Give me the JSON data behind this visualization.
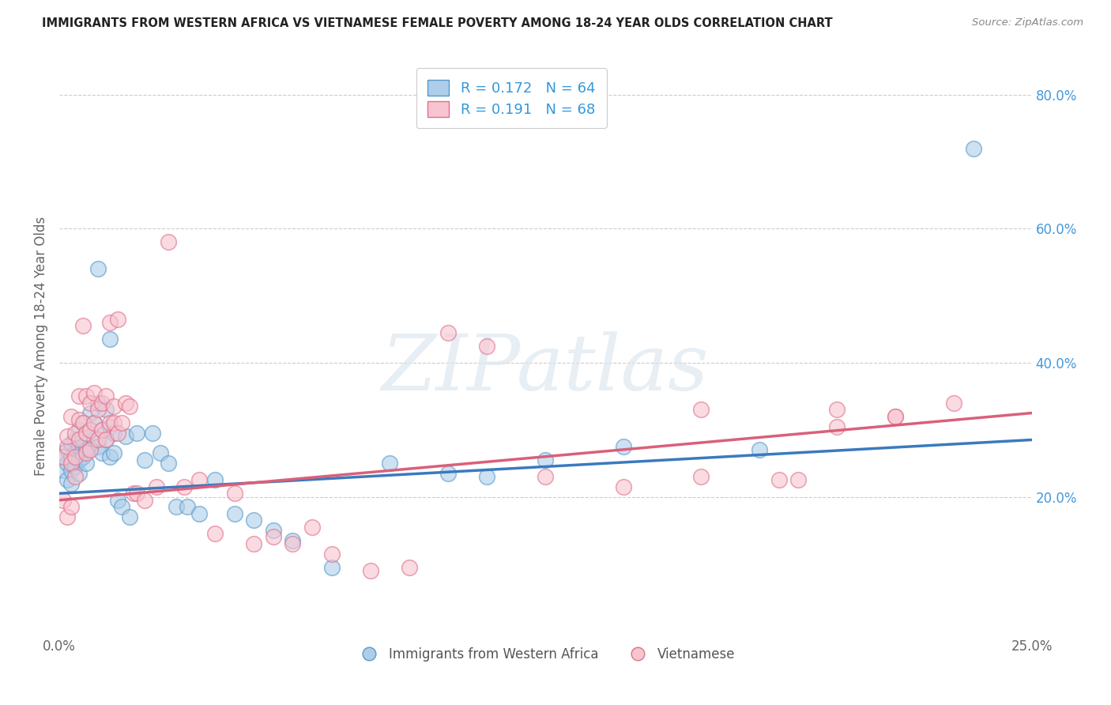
{
  "title": "IMMIGRANTS FROM WESTERN AFRICA VS VIETNAMESE FEMALE POVERTY AMONG 18-24 YEAR OLDS CORRELATION CHART",
  "source": "Source: ZipAtlas.com",
  "ylabel": "Female Poverty Among 18-24 Year Olds",
  "right_yticks": [
    "80.0%",
    "60.0%",
    "40.0%",
    "20.0%"
  ],
  "right_ytick_vals": [
    0.8,
    0.6,
    0.4,
    0.2
  ],
  "legend_text_blue": "R = 0.172   N = 64",
  "legend_text_pink": "R = 0.191   N = 68",
  "legend_label1": "Immigrants from Western Africa",
  "legend_label2": "Vietnamese",
  "blue_face_color": "#aecde8",
  "blue_edge_color": "#5599cc",
  "pink_face_color": "#f8c4d0",
  "pink_edge_color": "#e0708a",
  "blue_line_color": "#3a7abf",
  "pink_line_color": "#d9607a",
  "watermark": "ZIPatlas",
  "xlim": [
    0.0,
    0.25
  ],
  "ylim": [
    0.0,
    0.85
  ],
  "blue_line_y0": 0.205,
  "blue_line_y1": 0.285,
  "pink_line_y0": 0.195,
  "pink_line_y1": 0.325,
  "blue_scatter_x": [
    0.001,
    0.001,
    0.002,
    0.002,
    0.002,
    0.003,
    0.003,
    0.003,
    0.003,
    0.004,
    0.004,
    0.004,
    0.005,
    0.005,
    0.005,
    0.005,
    0.006,
    0.006,
    0.006,
    0.007,
    0.007,
    0.007,
    0.008,
    0.008,
    0.008,
    0.009,
    0.009,
    0.01,
    0.01,
    0.01,
    0.011,
    0.011,
    0.012,
    0.012,
    0.013,
    0.013,
    0.013,
    0.014,
    0.014,
    0.015,
    0.016,
    0.017,
    0.018,
    0.02,
    0.022,
    0.024,
    0.026,
    0.028,
    0.03,
    0.033,
    0.036,
    0.04,
    0.045,
    0.05,
    0.055,
    0.06,
    0.07,
    0.085,
    0.1,
    0.11,
    0.125,
    0.145,
    0.18,
    0.235
  ],
  "blue_scatter_y": [
    0.265,
    0.24,
    0.27,
    0.25,
    0.225,
    0.28,
    0.26,
    0.24,
    0.22,
    0.285,
    0.265,
    0.245,
    0.3,
    0.275,
    0.255,
    0.235,
    0.31,
    0.285,
    0.26,
    0.295,
    0.27,
    0.25,
    0.325,
    0.3,
    0.275,
    0.31,
    0.285,
    0.34,
    0.54,
    0.275,
    0.3,
    0.265,
    0.33,
    0.285,
    0.435,
    0.305,
    0.26,
    0.295,
    0.265,
    0.195,
    0.185,
    0.29,
    0.17,
    0.295,
    0.255,
    0.295,
    0.265,
    0.25,
    0.185,
    0.185,
    0.175,
    0.225,
    0.175,
    0.165,
    0.15,
    0.135,
    0.095,
    0.25,
    0.235,
    0.23,
    0.255,
    0.275,
    0.27,
    0.72
  ],
  "pink_scatter_x": [
    0.001,
    0.001,
    0.002,
    0.002,
    0.002,
    0.003,
    0.003,
    0.003,
    0.004,
    0.004,
    0.004,
    0.005,
    0.005,
    0.005,
    0.006,
    0.006,
    0.007,
    0.007,
    0.007,
    0.008,
    0.008,
    0.008,
    0.009,
    0.009,
    0.01,
    0.01,
    0.011,
    0.011,
    0.012,
    0.012,
    0.013,
    0.013,
    0.014,
    0.014,
    0.015,
    0.015,
    0.016,
    0.017,
    0.018,
    0.019,
    0.02,
    0.022,
    0.025,
    0.028,
    0.032,
    0.036,
    0.04,
    0.045,
    0.05,
    0.055,
    0.06,
    0.065,
    0.07,
    0.08,
    0.09,
    0.1,
    0.11,
    0.125,
    0.145,
    0.165,
    0.185,
    0.2,
    0.215,
    0.23,
    0.2,
    0.215,
    0.165,
    0.19
  ],
  "pink_scatter_y": [
    0.26,
    0.195,
    0.275,
    0.17,
    0.29,
    0.25,
    0.185,
    0.32,
    0.295,
    0.26,
    0.23,
    0.315,
    0.35,
    0.285,
    0.455,
    0.31,
    0.35,
    0.295,
    0.265,
    0.34,
    0.3,
    0.27,
    0.355,
    0.31,
    0.33,
    0.285,
    0.34,
    0.3,
    0.35,
    0.285,
    0.46,
    0.31,
    0.335,
    0.31,
    0.465,
    0.295,
    0.31,
    0.34,
    0.335,
    0.205,
    0.205,
    0.195,
    0.215,
    0.58,
    0.215,
    0.225,
    0.145,
    0.205,
    0.13,
    0.14,
    0.13,
    0.155,
    0.115,
    0.09,
    0.095,
    0.445,
    0.425,
    0.23,
    0.215,
    0.23,
    0.225,
    0.305,
    0.32,
    0.34,
    0.33,
    0.32,
    0.33,
    0.225
  ]
}
